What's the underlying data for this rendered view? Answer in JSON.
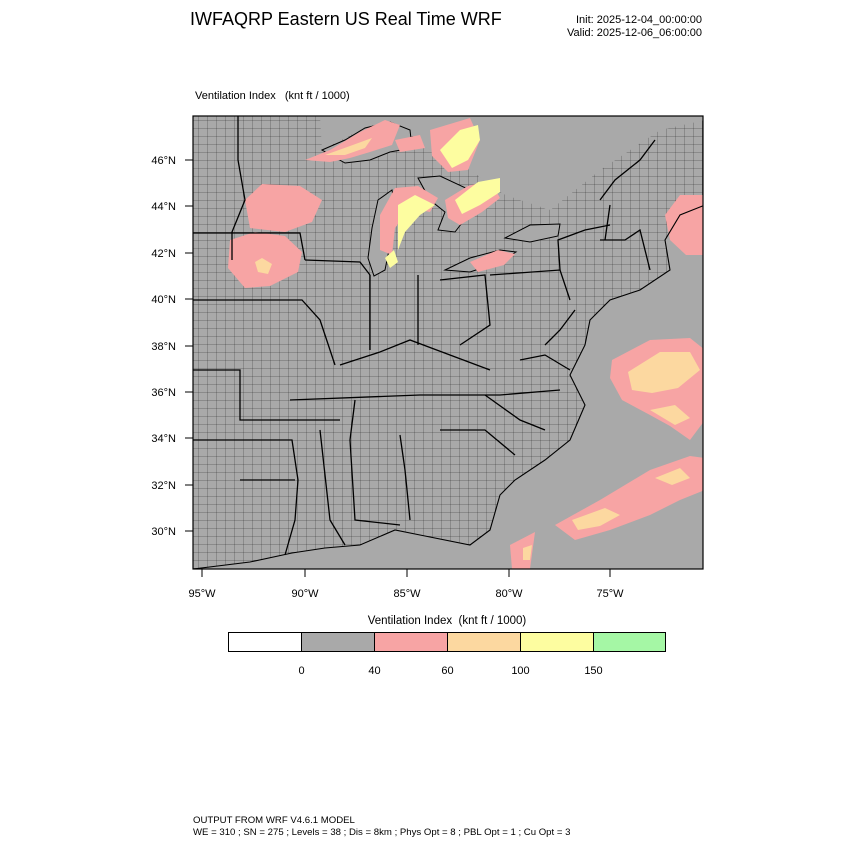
{
  "header": {
    "title": "IWFAQRP Eastern US Real Time WRF",
    "init": "Init: 2025-12-04_00:00:00",
    "valid": "Valid: 2025-12-06_06:00:00"
  },
  "map": {
    "caption": "Ventilation Index   (knt ft / 1000)",
    "lat_labels": [
      "46°N",
      "44°N",
      "42°N",
      "40°N",
      "38°N",
      "36°N",
      "34°N",
      "32°N",
      "30°N"
    ],
    "lon_labels": [
      "95°W",
      "90°W",
      "85°W",
      "80°W",
      "75°W"
    ],
    "colors": {
      "land": "#a9a9a9",
      "pink": "#f7a4a4",
      "tan": "#fcd8a0",
      "yellow": "#fdfda0"
    }
  },
  "colorbar": {
    "title": "Ventilation Index  (knt ft / 1000)",
    "boxes": [
      {
        "color": "#ffffff"
      },
      {
        "color": "#a9a9a9"
      },
      {
        "color": "#f7a4a4"
      },
      {
        "color": "#fcd8a0"
      },
      {
        "color": "#fdfda0"
      },
      {
        "color": "#a5f7a5"
      }
    ],
    "labels": [
      "0",
      "40",
      "60",
      "100",
      "150"
    ]
  },
  "footer": {
    "line1": "OUTPUT FROM WRF V4.6.1 MODEL",
    "line2": "WE = 310 ; SN = 275 ; Levels = 38 ; Dis = 8km ; Phys Opt = 8 ; PBL Opt = 1 ; Cu Opt = 3"
  }
}
